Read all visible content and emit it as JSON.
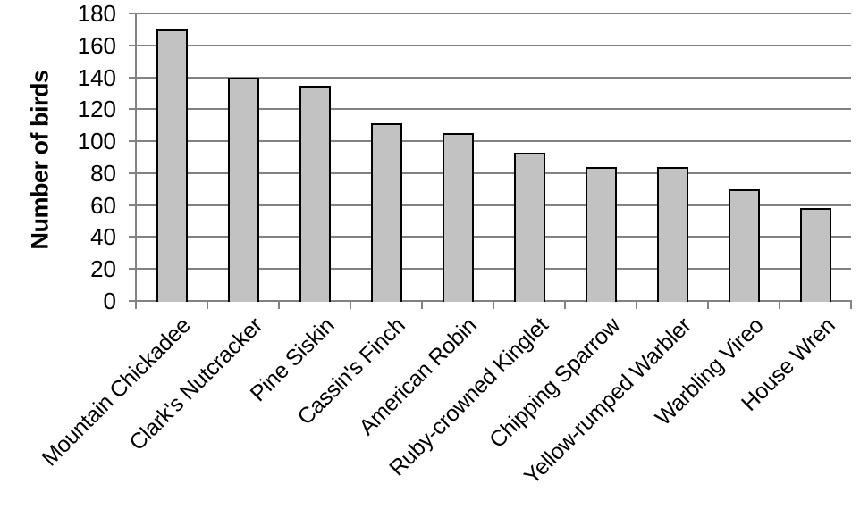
{
  "chart_data": {
    "type": "bar",
    "title": "",
    "categories": [
      "Mountain Chickadee",
      "Clark's Nutcracker",
      "Pine Siskin",
      "Cassin's Finch",
      "American Robin",
      "Ruby-crowned Kinglet",
      "Chipping Sparrow",
      "Yellow-rumped Warbler",
      "Warbling Vireo",
      "House Wren"
    ],
    "values": [
      170,
      140,
      135,
      111,
      105,
      93,
      84,
      84,
      70,
      58
    ],
    "xlabel": "",
    "ylabel": "Number of birds",
    "ylim": [
      0,
      180
    ],
    "ytick_step": 20,
    "ytick_labels": [
      "0",
      "20",
      "40",
      "60",
      "80",
      "100",
      "120",
      "140",
      "160",
      "180"
    ],
    "grid": true,
    "legend": false,
    "colors": {
      "bar_fill": "#c2c2c2",
      "bar_border": "#000000",
      "gridline": "#828282",
      "axis": "#828282",
      "text": "#000000",
      "background": "#ffffff"
    }
  }
}
